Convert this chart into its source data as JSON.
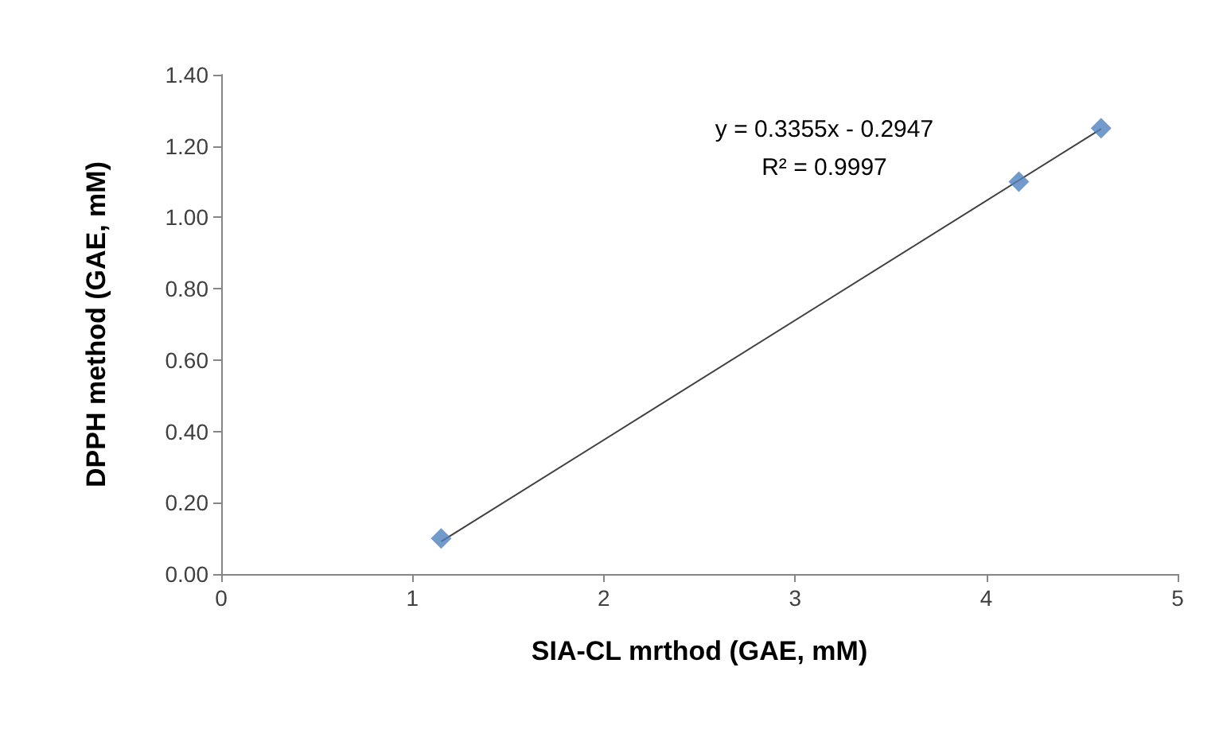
{
  "chart_data": {
    "type": "scatter",
    "xlabel": "SIA-CL mrthod (GAE, mM)",
    "ylabel": "DPPH method (GAE, mM)",
    "series": [
      {
        "color": "#4f81bd",
        "marker": "diamond",
        "x": [
          1.15,
          4.17,
          4.6
        ],
        "values": [
          0.1,
          1.1,
          1.25
        ]
      },
      {
        "type": "line",
        "color": "#404040",
        "marker": "none",
        "x": [
          1.15,
          4.6
        ],
        "values": [
          0.091,
          1.248
        ]
      }
    ],
    "xlim": [
      0,
      5
    ],
    "xticks": [
      0,
      1,
      2,
      3,
      4,
      5
    ],
    "ylim": [
      0,
      1.4
    ],
    "yticks": [
      {
        "value": 0,
        "label": "0.00"
      },
      {
        "value": 0.2,
        "label": "0.20"
      },
      {
        "value": 0.4,
        "label": "0.40"
      },
      {
        "value": 0.6,
        "label": "0.60"
      },
      {
        "value": 0.8,
        "label": "0.80"
      },
      {
        "value": 1,
        "label": "1.00"
      },
      {
        "value": 1.2,
        "label": "1.20"
      },
      {
        "value": 1.4,
        "label": "1.40"
      }
    ],
    "grid": false,
    "annotations": [
      "y = 0.3355x - 0.2947",
      "R² = 0.9997"
    ]
  }
}
